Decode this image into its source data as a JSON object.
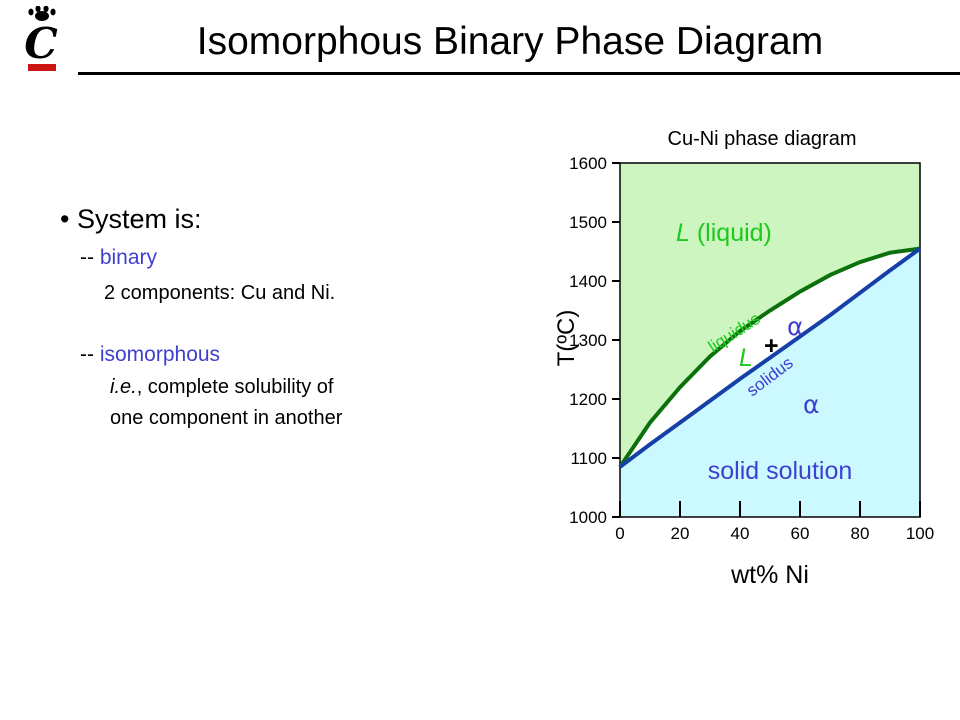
{
  "slide": {
    "title": "Isomorphous Binary Phase Diagram",
    "logo_letter": "C"
  },
  "content": {
    "bullet": "• System is:",
    "binary_prefix": "-- ",
    "binary": "binary",
    "binary_detail": "2 components:  Cu and Ni.",
    "isomorphous_prefix": "-- ",
    "isomorphous": "isomorphous",
    "ie": "i.e.",
    "solubility_line1": ", complete solubility of",
    "solubility_line2": "one component in another"
  },
  "colors": {
    "liquid_region": "#ccf5c0",
    "solid_region": "#ccf9ff",
    "two_phase_region": "#ffffff",
    "liquidus_line": "#0c700c",
    "solidus_line": "#1540a8",
    "green_label": "#1ec81e",
    "blue_label": "#3f3fd0",
    "logo_red": "#cc1414"
  },
  "chart_data": {
    "type": "line",
    "title": "Cu-Ni phase  diagram",
    "xlabel": "wt% Ni",
    "ylabel": "T(ºC)",
    "xlim": [
      0,
      100
    ],
    "ylim": [
      1000,
      1600
    ],
    "xticks": [
      0,
      20,
      40,
      60,
      80,
      100
    ],
    "yticks": [
      1000,
      1100,
      1200,
      1300,
      1400,
      1500,
      1600
    ],
    "series": [
      {
        "name": "liquidus",
        "x": [
          0,
          10,
          20,
          30,
          40,
          50,
          60,
          70,
          80,
          90,
          100
        ],
        "y": [
          1085,
          1160,
          1220,
          1272,
          1315,
          1350,
          1382,
          1410,
          1432,
          1448,
          1455
        ]
      },
      {
        "name": "solidus",
        "x": [
          0,
          10,
          20,
          30,
          40,
          50,
          60,
          70,
          80,
          90,
          100
        ],
        "y": [
          1085,
          1123,
          1160,
          1197,
          1234,
          1270,
          1306,
          1342,
          1380,
          1418,
          1455
        ]
      }
    ],
    "region_labels": {
      "liquid_L": "L",
      "liquid_text": " (liquid)",
      "two_phase_L": "L",
      "two_phase_plus": "+",
      "two_phase_alpha": "α",
      "alpha": "α",
      "solid": "solid solution",
      "liquidus_label": "liquidus",
      "solidus_label": "solidus"
    }
  }
}
